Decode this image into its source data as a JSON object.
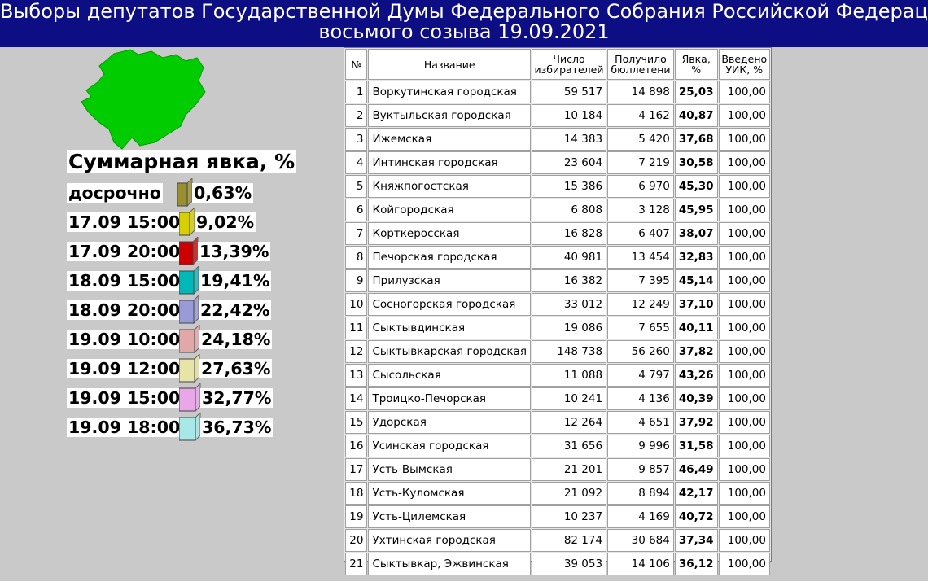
{
  "header": {
    "title_line1": "Выборы депутатов Государственной Думы Федерального Собрания Российской Федерации",
    "title_line2": "восьмого созыва 19.09.2021"
  },
  "colors": {
    "header_bg": "#0d0d84",
    "map_green": "#00cc00",
    "background": "#c9c9c9"
  },
  "turnout": {
    "title": "Суммарная явка, %",
    "rows": [
      {
        "label": "досрочно",
        "value": "0,63%",
        "fraction": 0.0063,
        "color": "#9a8f30"
      },
      {
        "label": "17.09 15:00",
        "value": "9,02%",
        "fraction": 0.0902,
        "color": "#d8cf00"
      },
      {
        "label": "17.09 20:00",
        "value": "13,39%",
        "fraction": 0.1339,
        "color": "#cc0000"
      },
      {
        "label": "18.09 15:00",
        "value": "19,41%",
        "fraction": 0.1941,
        "color": "#00b8b8"
      },
      {
        "label": "18.09 20:00",
        "value": "22,42%",
        "fraction": 0.2242,
        "color": "#9a9ad8"
      },
      {
        "label": "19.09 10:00",
        "value": "24,18%",
        "fraction": 0.2418,
        "color": "#e0a8a8"
      },
      {
        "label": "19.09 12:00",
        "value": "27,63%",
        "fraction": 0.2763,
        "color": "#e8e4a8"
      },
      {
        "label": "19.09 15:00",
        "value": "32,77%",
        "fraction": 0.3277,
        "color": "#e8a8e8"
      },
      {
        "label": "19.09 18:00",
        "value": "36,73%",
        "fraction": 0.3673,
        "color": "#a8e8e8"
      }
    ]
  },
  "table": {
    "headers": {
      "no": "№",
      "name": "Название",
      "voters": "Число избирателей",
      "ballots": "Получило бюллетени",
      "turnout": "Явка, %",
      "reported": "Введено УИК, %"
    },
    "rows": [
      {
        "no": "1",
        "name": "Воркутинская городская",
        "voters": "59 517",
        "ballots": "14 898",
        "turnout": "25,03",
        "reported": "100,00"
      },
      {
        "no": "2",
        "name": "Вуктыльская городская",
        "voters": "10 184",
        "ballots": "4 162",
        "turnout": "40,87",
        "reported": "100,00"
      },
      {
        "no": "3",
        "name": "Ижемская",
        "voters": "14 383",
        "ballots": "5 420",
        "turnout": "37,68",
        "reported": "100,00"
      },
      {
        "no": "4",
        "name": "Интинская городская",
        "voters": "23 604",
        "ballots": "7 219",
        "turnout": "30,58",
        "reported": "100,00"
      },
      {
        "no": "5",
        "name": "Княжпогостская",
        "voters": "15 386",
        "ballots": "6 970",
        "turnout": "45,30",
        "reported": "100,00"
      },
      {
        "no": "6",
        "name": "Койгородская",
        "voters": "6 808",
        "ballots": "3 128",
        "turnout": "45,95",
        "reported": "100,00"
      },
      {
        "no": "7",
        "name": "Корткеросская",
        "voters": "16 828",
        "ballots": "6 407",
        "turnout": "38,07",
        "reported": "100,00"
      },
      {
        "no": "8",
        "name": "Печорская городская",
        "voters": "40 981",
        "ballots": "13 454",
        "turnout": "32,83",
        "reported": "100,00"
      },
      {
        "no": "9",
        "name": "Прилузская",
        "voters": "16 382",
        "ballots": "7 395",
        "turnout": "45,14",
        "reported": "100,00"
      },
      {
        "no": "10",
        "name": "Сосногорская городская",
        "voters": "33 012",
        "ballots": "12 249",
        "turnout": "37,10",
        "reported": "100,00"
      },
      {
        "no": "11",
        "name": "Сыктывдинская",
        "voters": "19 086",
        "ballots": "7 655",
        "turnout": "40,11",
        "reported": "100,00"
      },
      {
        "no": "12",
        "name": "Сыктывкарская городская",
        "voters": "148 738",
        "ballots": "56 260",
        "turnout": "37,82",
        "reported": "100,00"
      },
      {
        "no": "13",
        "name": "Сысольская",
        "voters": "11 088",
        "ballots": "4 797",
        "turnout": "43,26",
        "reported": "100,00"
      },
      {
        "no": "14",
        "name": "Троицко-Печорская",
        "voters": "10 241",
        "ballots": "4 136",
        "turnout": "40,39",
        "reported": "100,00"
      },
      {
        "no": "15",
        "name": "Удорская",
        "voters": "12 264",
        "ballots": "4 651",
        "turnout": "37,92",
        "reported": "100,00"
      },
      {
        "no": "16",
        "name": "Усинская городская",
        "voters": "31 656",
        "ballots": "9 996",
        "turnout": "31,58",
        "reported": "100,00"
      },
      {
        "no": "17",
        "name": "Усть-Вымская",
        "voters": "21 201",
        "ballots": "9 857",
        "turnout": "46,49",
        "reported": "100,00"
      },
      {
        "no": "18",
        "name": "Усть-Куломская",
        "voters": "21 092",
        "ballots": "8 894",
        "turnout": "42,17",
        "reported": "100,00"
      },
      {
        "no": "19",
        "name": "Усть-Цилемская",
        "voters": "10 237",
        "ballots": "4 169",
        "turnout": "40,72",
        "reported": "100,00"
      },
      {
        "no": "20",
        "name": "Ухтинская городская",
        "voters": "82 174",
        "ballots": "30 684",
        "turnout": "37,34",
        "reported": "100,00"
      },
      {
        "no": "21",
        "name": "Сыктывкар, Эжвинская",
        "voters": "39 053",
        "ballots": "14 106",
        "turnout": "36,12",
        "reported": "100,00"
      }
    ]
  }
}
